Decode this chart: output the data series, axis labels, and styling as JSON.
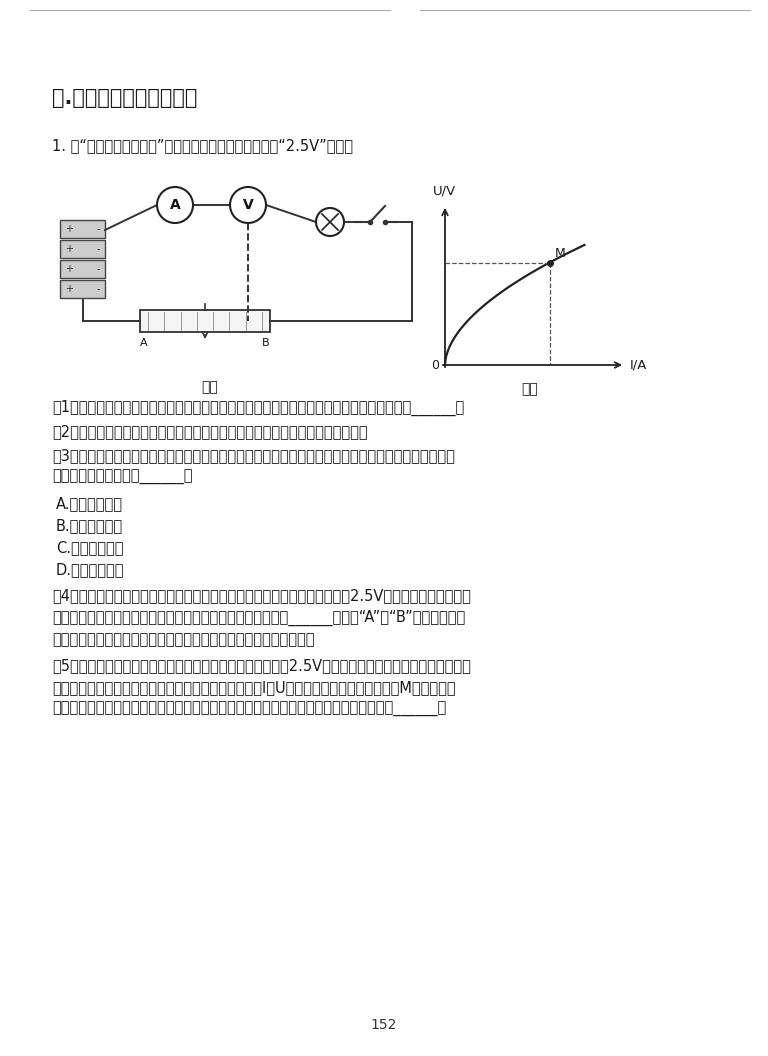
{
  "title": "六.电学实验探究必会题型",
  "page_number": "152",
  "background_color": "#ffffff",
  "text_color": "#1a1a1a",
  "question_intro": "1. 在“测量小灯泡电功率”的实验中，所用小灯泡上标有“2.5V”字样。",
  "figure_caption_left": "图甲",
  "figure_caption_right": "图乙",
  "q1": "（1）如图甲所示是小军已经连接的部分实验电路，在连接电路时，小军操作上出现的错误是______。",
  "q2": "（2）请你用笔画线代替导线在答题卡上帮小军将图甲所示的实物电路连接完整。",
  "q3": "（3）连接完实验电路，检查无误后，闭合开关，发现小灯泡不亮，电流表、电压表的示数都为零。出现这种现象的原因可能是______。",
  "q3_continue": "这种现象的原因可能是______。",
  "optA": "A.　小灯泡短路",
  "optB": "B.　小灯泡开路",
  "optC": "C.　变阔器短路",
  "optD": "D.　变阔器开路",
  "q4": "（4）排除上述故障后，闭合开关，调节滑动变阔器使小灯泡两端电压略高于2.5V，观察小灯泡的亮度并记下电压表、电流表的示数。接下来，将滑动变阔器的滑片向______（选填“A”或“B”）端移动，使小灯泡正常发光，观察小灯泡的亮度并记下电压表、电流表的示数。",
  "q5_line1": "（5）继续调节滑动变阔器，使小灯泡两端电压略低于、等于2.5V，观察小灯泡的亮度并记下电压表、电",
  "q5_line2": "流表的示数。根据这些实验数据画出小灯泡的电流电压I－U关系图象，过此图线上任一点M分别做两坐",
  "q5_line3": "标轴的平行线如图乙所示，它们与两坐标轴围成的矩形的面积在数值上等于小灯泡此时的______。"
}
